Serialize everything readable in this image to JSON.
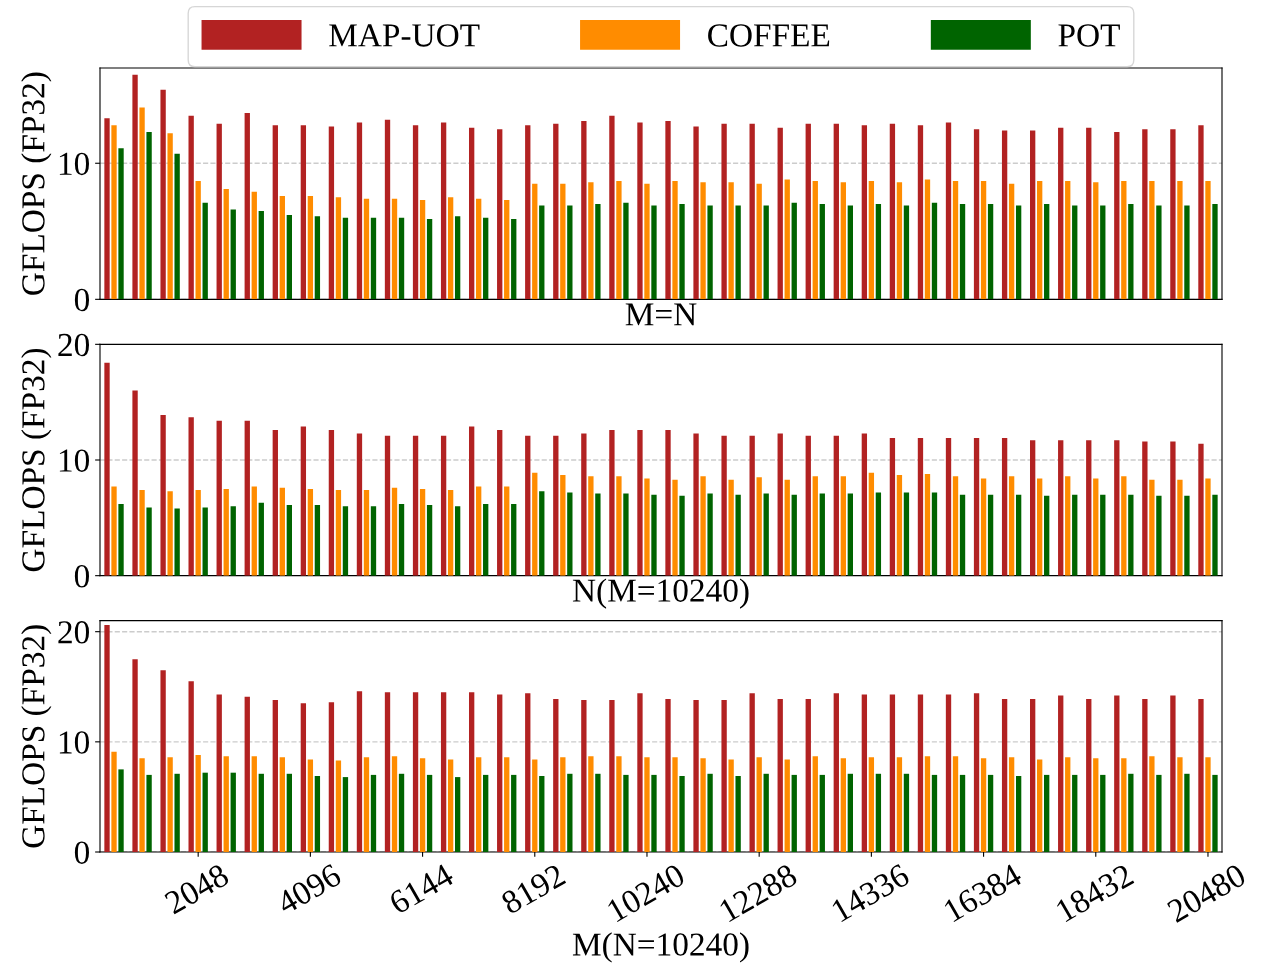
{
  "chart_data": [
    {
      "type": "bar",
      "xlabel": "M=N",
      "ylabel": "GFLOPS (FP32)",
      "categories": [
        null,
        null,
        null,
        null,
        null,
        null,
        null,
        null,
        null,
        null,
        null,
        null,
        null,
        null,
        null,
        null,
        null,
        null,
        null,
        null,
        null,
        null,
        null,
        null,
        null,
        null,
        null,
        null,
        null,
        null,
        null,
        null,
        null,
        null,
        null,
        null,
        null,
        null,
        null,
        null
      ],
      "ylim": [
        0,
        17
      ],
      "yticks": [
        0,
        10
      ],
      "grid": "y",
      "legend": "top",
      "tick_labels": "y",
      "series": [
        {
          "name": "MAP-UOT",
          "color": "#b22222",
          "values": [
            13.3,
            16.5,
            15.4,
            13.5,
            12.9,
            13.7,
            12.8,
            12.8,
            12.7,
            13.0,
            13.2,
            12.8,
            13.0,
            12.6,
            12.5,
            12.8,
            12.9,
            13.1,
            13.5,
            13.0,
            13.1,
            12.7,
            12.9,
            12.9,
            12.6,
            12.9,
            12.9,
            12.8,
            12.9,
            12.8,
            13.0,
            12.5,
            12.4,
            12.4,
            12.6,
            12.6,
            12.3,
            12.5,
            12.5,
            12.8
          ]
        },
        {
          "name": "COFFEE",
          "color": "#ff8c00",
          "values": [
            12.8,
            14.1,
            12.2,
            8.7,
            8.1,
            7.9,
            7.6,
            7.6,
            7.5,
            7.4,
            7.4,
            7.3,
            7.5,
            7.4,
            7.3,
            8.5,
            8.5,
            8.6,
            8.7,
            8.5,
            8.7,
            8.6,
            8.6,
            8.5,
            8.8,
            8.7,
            8.6,
            8.7,
            8.6,
            8.8,
            8.7,
            8.7,
            8.5,
            8.7,
            8.7,
            8.6,
            8.7,
            8.7,
            8.7,
            8.7
          ]
        },
        {
          "name": "POT",
          "color": "#006400",
          "values": [
            11.1,
            12.3,
            10.7,
            7.1,
            6.6,
            6.5,
            6.2,
            6.1,
            6.0,
            6.0,
            6.0,
            5.9,
            6.1,
            6.0,
            5.9,
            6.9,
            6.9,
            7.0,
            7.1,
            6.9,
            7.0,
            6.9,
            6.9,
            6.9,
            7.1,
            7.0,
            6.9,
            7.0,
            6.9,
            7.1,
            7.0,
            7.0,
            6.9,
            7.0,
            6.9,
            6.9,
            7.0,
            6.9,
            6.9,
            7.0
          ]
        }
      ]
    },
    {
      "type": "bar",
      "xlabel": "N(M=10240)",
      "ylabel": "GFLOPS (FP32)",
      "categories": [
        null,
        null,
        null,
        null,
        null,
        null,
        null,
        null,
        null,
        null,
        null,
        null,
        null,
        null,
        null,
        null,
        null,
        null,
        null,
        null,
        null,
        null,
        null,
        null,
        null,
        null,
        null,
        null,
        null,
        null,
        null,
        null,
        null,
        null,
        null,
        null,
        null,
        null,
        null,
        null
      ],
      "ylim": [
        0,
        20
      ],
      "yticks": [
        0,
        10,
        20
      ],
      "grid": "y",
      "tick_labels": "y",
      "series": [
        {
          "color": "#b22222",
          "values": [
            18.4,
            16.0,
            13.9,
            13.7,
            13.4,
            13.4,
            12.6,
            12.9,
            12.6,
            12.3,
            12.1,
            12.1,
            12.1,
            12.9,
            12.6,
            12.1,
            12.1,
            12.3,
            12.6,
            12.6,
            12.6,
            12.3,
            12.1,
            12.1,
            12.3,
            12.1,
            12.1,
            12.3,
            11.9,
            11.9,
            11.9,
            11.9,
            11.9,
            11.7,
            11.7,
            11.7,
            11.7,
            11.6,
            11.6,
            11.4
          ]
        },
        {
          "color": "#ff8c00",
          "values": [
            7.7,
            7.4,
            7.3,
            7.4,
            7.5,
            7.7,
            7.6,
            7.5,
            7.4,
            7.4,
            7.6,
            7.5,
            7.4,
            7.7,
            7.7,
            8.9,
            8.7,
            8.6,
            8.6,
            8.4,
            8.3,
            8.6,
            8.3,
            8.5,
            8.3,
            8.6,
            8.6,
            8.9,
            8.7,
            8.8,
            8.6,
            8.4,
            8.6,
            8.4,
            8.6,
            8.4,
            8.6,
            8.3,
            8.3,
            8.4
          ]
        },
        {
          "color": "#006400",
          "values": [
            6.2,
            5.9,
            5.8,
            5.9,
            6.0,
            6.3,
            6.1,
            6.1,
            6.0,
            6.0,
            6.2,
            6.1,
            6.0,
            6.2,
            6.2,
            7.3,
            7.2,
            7.1,
            7.1,
            7.0,
            6.9,
            7.1,
            7.0,
            7.1,
            7.0,
            7.1,
            7.1,
            7.2,
            7.2,
            7.2,
            7.0,
            7.0,
            7.0,
            6.9,
            7.0,
            7.0,
            7.0,
            6.9,
            6.9,
            7.0
          ]
        }
      ]
    },
    {
      "type": "bar",
      "xlabel": "M(N=10240)",
      "ylabel": "GFLOPS (FP32)",
      "categories": [
        null,
        null,
        null,
        "2048",
        null,
        null,
        null,
        "4096",
        null,
        null,
        null,
        "6144",
        null,
        null,
        null,
        "8192",
        null,
        null,
        null,
        "10240",
        null,
        null,
        null,
        "12288",
        null,
        null,
        null,
        "14336",
        null,
        null,
        null,
        "16384",
        null,
        null,
        null,
        "18432",
        null,
        null,
        null,
        "20480"
      ],
      "ylim": [
        0,
        21
      ],
      "yticks": [
        0,
        10,
        20
      ],
      "grid": "y",
      "series": [
        {
          "color": "#b22222",
          "values": [
            20.6,
            17.5,
            16.5,
            15.5,
            14.3,
            14.1,
            13.8,
            13.5,
            13.6,
            14.6,
            14.5,
            14.5,
            14.5,
            14.5,
            14.3,
            14.4,
            13.9,
            13.8,
            13.8,
            14.4,
            13.9,
            13.8,
            13.8,
            14.4,
            13.9,
            13.9,
            14.4,
            14.3,
            14.3,
            14.3,
            14.3,
            14.4,
            13.9,
            13.9,
            14.2,
            13.9,
            14.2,
            13.9,
            14.2,
            13.9
          ]
        },
        {
          "color": "#ff8c00",
          "values": [
            9.1,
            8.5,
            8.6,
            8.8,
            8.7,
            8.7,
            8.6,
            8.4,
            8.3,
            8.6,
            8.7,
            8.5,
            8.4,
            8.6,
            8.6,
            8.4,
            8.6,
            8.7,
            8.7,
            8.6,
            8.6,
            8.5,
            8.4,
            8.6,
            8.4,
            8.7,
            8.5,
            8.6,
            8.6,
            8.7,
            8.7,
            8.5,
            8.6,
            8.4,
            8.6,
            8.5,
            8.5,
            8.7,
            8.6,
            8.6
          ]
        },
        {
          "color": "#006400",
          "values": [
            7.5,
            7.0,
            7.1,
            7.2,
            7.2,
            7.1,
            7.1,
            6.9,
            6.8,
            7.0,
            7.1,
            7.0,
            6.8,
            7.0,
            7.0,
            6.9,
            7.1,
            7.1,
            7.0,
            7.0,
            6.9,
            7.1,
            6.9,
            7.1,
            7.0,
            7.0,
            7.1,
            7.1,
            7.1,
            7.0,
            7.0,
            7.0,
            6.9,
            7.0,
            7.0,
            7.0,
            7.1,
            7.0,
            7.1,
            7.0
          ]
        }
      ]
    }
  ]
}
